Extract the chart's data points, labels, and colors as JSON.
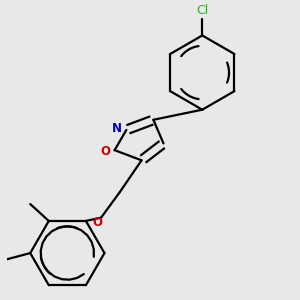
{
  "background_color": "#e8e8e8",
  "bond_color": "#000000",
  "N_color": "#0000cc",
  "O_color": "#cc0000",
  "Cl_color": "#33aa33",
  "label_N": "N",
  "label_O": "O",
  "label_Cl": "Cl",
  "figsize": [
    3.0,
    3.0
  ],
  "dpi": 100
}
